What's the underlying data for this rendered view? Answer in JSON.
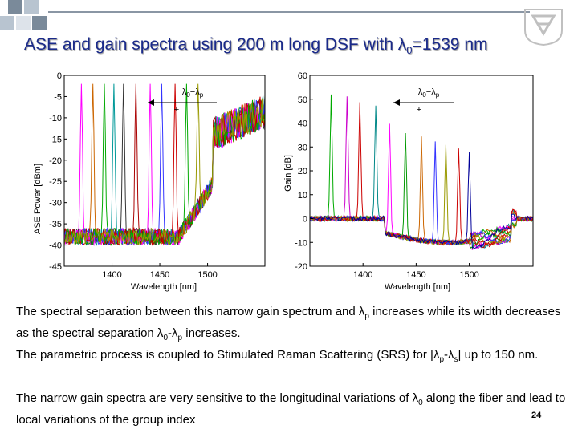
{
  "slide": {
    "title_main": "ASE  and gain spectra using 200 m  long DSF with λ",
    "title_sub": "0",
    "title_end": "=1539 nm",
    "page_number": "24"
  },
  "paragraphs": {
    "p1": {
      "a": "The spectral separation between this narrow gain spectrum and λ",
      "b": "p",
      "c": " increases while its width decreases as the spectral separation λ",
      "d": "0",
      "e": "-λ",
      "f": "p",
      "g": " increases."
    },
    "p2": {
      "a": "The parametric process is coupled to Stimulated Raman Scattering (SRS) for |λ",
      "b": "p",
      "c": "-λ",
      "d": "s",
      "e": "| up to 150 nm."
    },
    "p3": {
      "a": "The narrow gain spectra are very sensitive to the longitudinal variations of λ",
      "b": "0",
      "c": " along the fiber and lead to local variations of the group index"
    }
  },
  "colors": {
    "title": "#1a2a8a",
    "deco_squares": [
      "#7a8a9a",
      "#b8c4d0",
      "#dde3ea"
    ]
  },
  "chart_data": [
    {
      "type": "line",
      "ylabel": "ASE Power [dBm]",
      "xlabel": "Wavelength [nm]",
      "xlim": [
        1350,
        1560
      ],
      "ylim": [
        -45,
        0
      ],
      "x_ticks": [
        1400,
        1450,
        1500
      ],
      "y_ticks": [
        0,
        -5,
        -10,
        -15,
        -20,
        -25,
        -30,
        -35,
        -40,
        -45
      ],
      "annotation": {
        "main": "λ",
        "sub": "0",
        "rest": "−λ",
        "sub2": "p"
      },
      "grid": false,
      "series_peaks_nm": [
        1368,
        1380,
        1392,
        1402,
        1412,
        1425,
        1440,
        1452,
        1466,
        1478,
        1490
      ],
      "series_colors": [
        "#ff00ff",
        "#cc6600",
        "#00aa00",
        "#009999",
        "#333333",
        "#aa0000",
        "#ff00ff",
        "#3333ff",
        "#cc0000",
        "#00aa00",
        "#999900"
      ]
    },
    {
      "type": "line",
      "ylabel": "Gain [dB]",
      "xlabel": "Wavelength [nm]",
      "xlim": [
        1350,
        1560
      ],
      "ylim": [
        -20,
        60
      ],
      "x_ticks": [
        1400,
        1450,
        1500
      ],
      "y_ticks": [
        60,
        50,
        40,
        30,
        20,
        10,
        0,
        -10,
        -20
      ],
      "annotation": {
        "main": "λ",
        "sub": "0",
        "rest": "−λ",
        "sub2": "p"
      },
      "grid": false,
      "series_peaks_nm": [
        1370,
        1385,
        1397,
        1412,
        1425,
        1440,
        1455,
        1468,
        1478,
        1490,
        1500
      ],
      "series_colors": [
        "#00aa00",
        "#cc00cc",
        "#cc0000",
        "#008888",
        "#ff00ff",
        "#009900",
        "#cc6600",
        "#3333ff",
        "#999900",
        "#cc0000",
        "#000099"
      ]
    }
  ]
}
